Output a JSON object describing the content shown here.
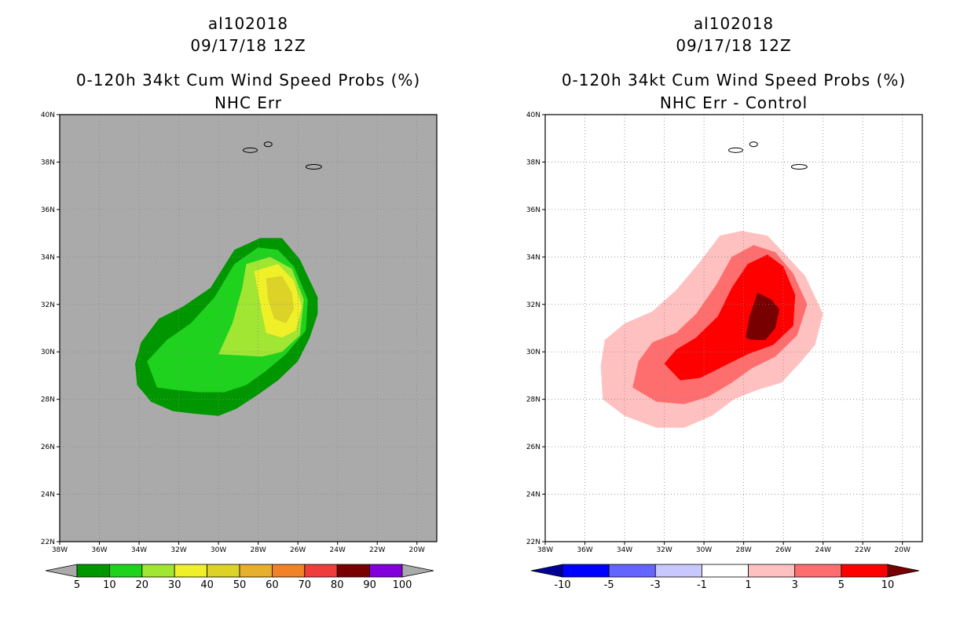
{
  "chart_data": [
    {
      "type": "heatmap",
      "id": "left",
      "title_lines": [
        "al102018",
        "09/17/18 12Z",
        "0-120h 34kt Cum Wind Speed Probs (%)",
        "NHC Err"
      ],
      "xlim": [
        -38,
        -19
      ],
      "ylim": [
        22,
        40
      ],
      "x_ticks": [
        -38,
        -36,
        -34,
        -32,
        -30,
        -28,
        -26,
        -24,
        -22,
        -20
      ],
      "x_tick_labels": [
        "38W",
        "36W",
        "34W",
        "32W",
        "30W",
        "28W",
        "26W",
        "24W",
        "22W",
        "20W"
      ],
      "y_ticks": [
        22,
        24,
        26,
        28,
        30,
        32,
        34,
        36,
        38,
        40
      ],
      "y_tick_labels": [
        "22N",
        "24N",
        "26N",
        "28N",
        "30N",
        "32N",
        "34N",
        "36N",
        "38N",
        "40N"
      ],
      "grid": true,
      "background": "#aaaaaa",
      "colorbar": {
        "labels": [
          "5",
          "10",
          "20",
          "30",
          "40",
          "50",
          "60",
          "70",
          "80",
          "90",
          "100"
        ],
        "colors": [
          "#009600",
          "#1ed21e",
          "#a0e632",
          "#f0f028",
          "#dcd228",
          "#e6af2d",
          "#f08228",
          "#f03c3c",
          "#780000",
          "#8200dc"
        ],
        "low_arrow": "#aaaaaa",
        "high_arrow": "#aaaaaa"
      },
      "contours": [
        {
          "level": 5,
          "color": "#009600",
          "points": [
            [
              -34.2,
              29.5
            ],
            [
              -33.9,
              30.4
            ],
            [
              -33,
              31.4
            ],
            [
              -31.8,
              31.9
            ],
            [
              -30.4,
              32.7
            ],
            [
              -29.2,
              34.3
            ],
            [
              -27.9,
              34.8
            ],
            [
              -26.8,
              34.8
            ],
            [
              -25.9,
              33.9
            ],
            [
              -25,
              32.3
            ],
            [
              -25,
              31.6
            ],
            [
              -25.4,
              30.6
            ],
            [
              -26,
              29.6
            ],
            [
              -27,
              28.8
            ],
            [
              -28,
              28.2
            ],
            [
              -29.1,
              27.6
            ],
            [
              -30,
              27.3
            ],
            [
              -31.3,
              27.4
            ],
            [
              -32.3,
              27.5
            ],
            [
              -33.4,
              27.9
            ],
            [
              -34.1,
              28.6
            ]
          ]
        },
        {
          "level": 10,
          "color": "#1ed21e",
          "points": [
            [
              -33.6,
              29.6
            ],
            [
              -32.6,
              30.5
            ],
            [
              -31.4,
              31.2
            ],
            [
              -30.2,
              32.3
            ],
            [
              -29.2,
              33.7
            ],
            [
              -28,
              34.4
            ],
            [
              -27,
              34.3
            ],
            [
              -26.2,
              33.6
            ],
            [
              -25.5,
              32.2
            ],
            [
              -25.6,
              30.9
            ],
            [
              -26.6,
              29.9
            ],
            [
              -27.6,
              29.2
            ],
            [
              -28.6,
              28.6
            ],
            [
              -29.7,
              28.3
            ],
            [
              -31,
              28.3
            ],
            [
              -32.2,
              28.4
            ],
            [
              -33.1,
              28.5
            ]
          ]
        },
        {
          "level": 20,
          "color": "#a0e632",
          "points": [
            [
              -30,
              29.9
            ],
            [
              -29.3,
              31.2
            ],
            [
              -28.8,
              32.7
            ],
            [
              -28.6,
              33.7
            ],
            [
              -27.4,
              34
            ],
            [
              -26.3,
              33.5
            ],
            [
              -25.7,
              32.2
            ],
            [
              -25.9,
              30.7
            ],
            [
              -26.8,
              30
            ],
            [
              -27.8,
              29.8
            ]
          ]
        },
        {
          "level": 30,
          "color": "#f0f028",
          "points": [
            [
              -28.2,
              33.4
            ],
            [
              -27,
              33.7
            ],
            [
              -26.2,
              33
            ],
            [
              -25.8,
              31.9
            ],
            [
              -26.1,
              30.9
            ],
            [
              -26.8,
              30.6
            ],
            [
              -27.6,
              30.8
            ],
            [
              -27.8,
              31.6
            ],
            [
              -28,
              32.5
            ]
          ]
        },
        {
          "level": 40,
          "color": "#dcd228",
          "points": [
            [
              -27.6,
              33.1
            ],
            [
              -26.8,
              33.2
            ],
            [
              -26.3,
              32.5
            ],
            [
              -26.2,
              31.8
            ],
            [
              -26.6,
              31.2
            ],
            [
              -27.2,
              31.4
            ],
            [
              -27.5,
              32.2
            ]
          ]
        }
      ],
      "islands": [
        [
          -28.4,
          38.5
        ],
        [
          -27.5,
          38.75
        ],
        [
          -25.2,
          37.8
        ]
      ]
    },
    {
      "type": "heatmap",
      "id": "right",
      "title_lines": [
        "al102018",
        "09/17/18 12Z",
        "0-120h 34kt Cum Wind Speed Probs (%)",
        "NHC Err - Control"
      ],
      "xlim": [
        -38,
        -19
      ],
      "ylim": [
        22,
        40
      ],
      "x_ticks": [
        -38,
        -36,
        -34,
        -32,
        -30,
        -28,
        -26,
        -24,
        -22,
        -20
      ],
      "x_tick_labels": [
        "38W",
        "36W",
        "34W",
        "32W",
        "30W",
        "28W",
        "26W",
        "24W",
        "22W",
        "20W"
      ],
      "y_ticks": [
        22,
        24,
        26,
        28,
        30,
        32,
        34,
        36,
        38,
        40
      ],
      "y_tick_labels": [
        "22N",
        "24N",
        "26N",
        "28N",
        "30N",
        "32N",
        "34N",
        "36N",
        "38N",
        "40N"
      ],
      "grid": true,
      "background": "#ffffff",
      "colorbar": {
        "labels": [
          "-10",
          "-5",
          "-3",
          "-1",
          "1",
          "3",
          "5",
          "10"
        ],
        "colors": [
          "#0000ff",
          "#6464ff",
          "#c8c8ff",
          "#ffffff",
          "#ffc0c0",
          "#ff6e6e",
          "#ff0000"
        ],
        "low_arrow": "#000096",
        "high_arrow": "#780000"
      },
      "contours": [
        {
          "level": 1,
          "color": "#ffc0c0",
          "points": [
            [
              -35.1,
              28
            ],
            [
              -35.2,
              29.4
            ],
            [
              -35,
              30.5
            ],
            [
              -34,
              31.2
            ],
            [
              -32.6,
              31.7
            ],
            [
              -31.4,
              32.6
            ],
            [
              -30.2,
              33.8
            ],
            [
              -29.2,
              34.9
            ],
            [
              -28.1,
              35.1
            ],
            [
              -26.8,
              34.9
            ],
            [
              -25.9,
              34.1
            ],
            [
              -24.9,
              33.2
            ],
            [
              -24,
              31.6
            ],
            [
              -24.4,
              30.3
            ],
            [
              -25.2,
              29.5
            ],
            [
              -26.1,
              28.7
            ],
            [
              -27.3,
              28.4
            ],
            [
              -28.5,
              28
            ],
            [
              -29.6,
              27.3
            ],
            [
              -31,
              26.8
            ],
            [
              -32.4,
              26.8
            ],
            [
              -34,
              27.3
            ]
          ]
        },
        {
          "level": 3,
          "color": "#ff6e6e",
          "points": [
            [
              -33.6,
              28.5
            ],
            [
              -33.3,
              29.6
            ],
            [
              -32.6,
              30.4
            ],
            [
              -31.4,
              30.8
            ],
            [
              -30.4,
              31.6
            ],
            [
              -29.4,
              32.8
            ],
            [
              -28.6,
              34
            ],
            [
              -27.5,
              34.5
            ],
            [
              -26.4,
              34.2
            ],
            [
              -25.5,
              33.3
            ],
            [
              -24.8,
              32
            ],
            [
              -25.3,
              30.7
            ],
            [
              -26.4,
              29.8
            ],
            [
              -27.6,
              29.3
            ],
            [
              -28.6,
              28.7
            ],
            [
              -29.8,
              28.1
            ],
            [
              -31,
              27.8
            ],
            [
              -32.4,
              27.9
            ]
          ]
        },
        {
          "level": 5,
          "color": "#ff0000",
          "points": [
            [
              -32,
              29.5
            ],
            [
              -31.4,
              30.1
            ],
            [
              -30.4,
              30.6
            ],
            [
              -29.3,
              31.5
            ],
            [
              -28.6,
              32.7
            ],
            [
              -27.8,
              33.7
            ],
            [
              -26.8,
              34.1
            ],
            [
              -26,
              33.6
            ],
            [
              -25.4,
              32.4
            ],
            [
              -25.5,
              31.1
            ],
            [
              -26.5,
              30.3
            ],
            [
              -27.8,
              29.9
            ],
            [
              -29,
              29.4
            ],
            [
              -30.2,
              28.9
            ],
            [
              -31.2,
              28.8
            ]
          ]
        },
        {
          "level": 10,
          "color": "#780000",
          "points": [
            [
              -27.9,
              30.6
            ],
            [
              -27.7,
              31.5
            ],
            [
              -27.3,
              32.5
            ],
            [
              -26.6,
              32.2
            ],
            [
              -26.2,
              31.8
            ],
            [
              -26.4,
              31
            ],
            [
              -26.9,
              30.5
            ],
            [
              -27.6,
              30.5
            ]
          ]
        }
      ],
      "islands": [
        [
          -28.4,
          38.5
        ],
        [
          -27.5,
          38.75
        ],
        [
          -25.2,
          37.8
        ]
      ]
    }
  ]
}
